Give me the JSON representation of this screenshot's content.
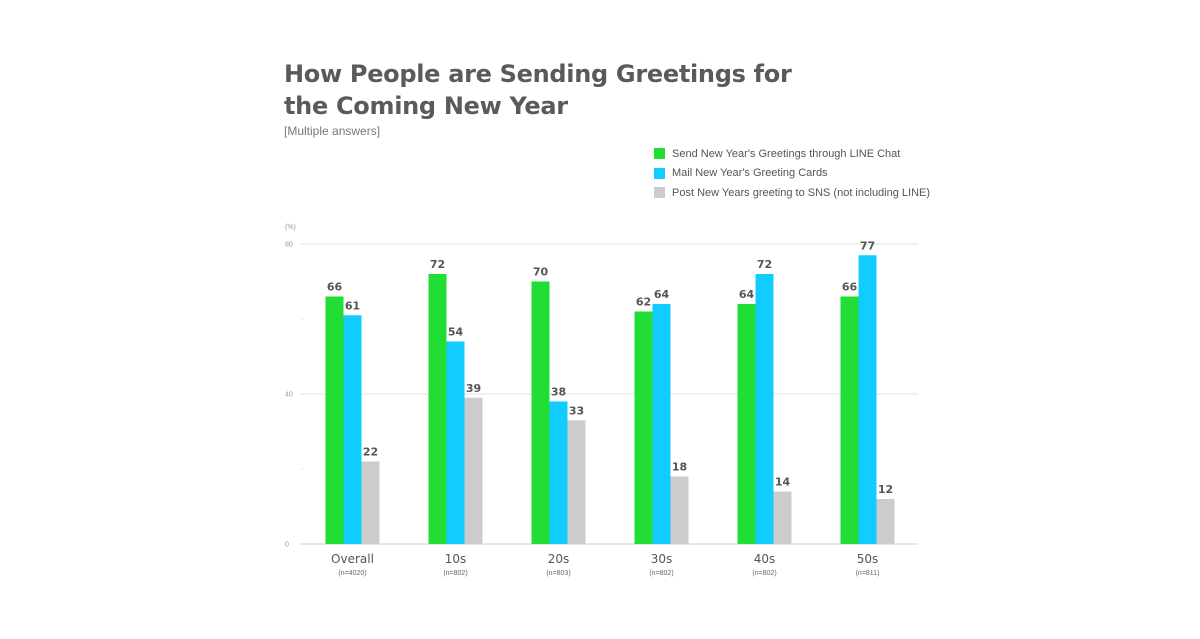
{
  "chart_data": {
    "type": "bar",
    "title": "How People are Sending Greetings for the Coming New Year",
    "subtitle": "[Multiple answers]",
    "ylabel": "(%)",
    "ylim": [
      0,
      80
    ],
    "yticks": [
      "80",
      "40",
      "0"
    ],
    "grid": true,
    "legend_position": "top-right",
    "categories": [
      "Overall",
      "10s",
      "20s",
      "30s",
      "40s",
      "50s"
    ],
    "category_notes": [
      "(n=4020)",
      "(n=802)",
      "(n=803)",
      "(n=802)",
      "(n=802)",
      "(n=811)"
    ],
    "series": [
      {
        "name": "Send New Year's Greetings through LINE Chat",
        "color": "#22dd33",
        "values": [
          66,
          72,
          70,
          62,
          64,
          66
        ]
      },
      {
        "name": "Mail New Year's Greeting Cards",
        "color": "#11ccff",
        "values": [
          61,
          54,
          38,
          64,
          72,
          77
        ]
      },
      {
        "name": "Post New Years greeting to SNS (not including LINE)",
        "color": "#cccccc",
        "values": [
          22,
          39,
          33,
          18,
          14,
          12
        ]
      }
    ]
  }
}
